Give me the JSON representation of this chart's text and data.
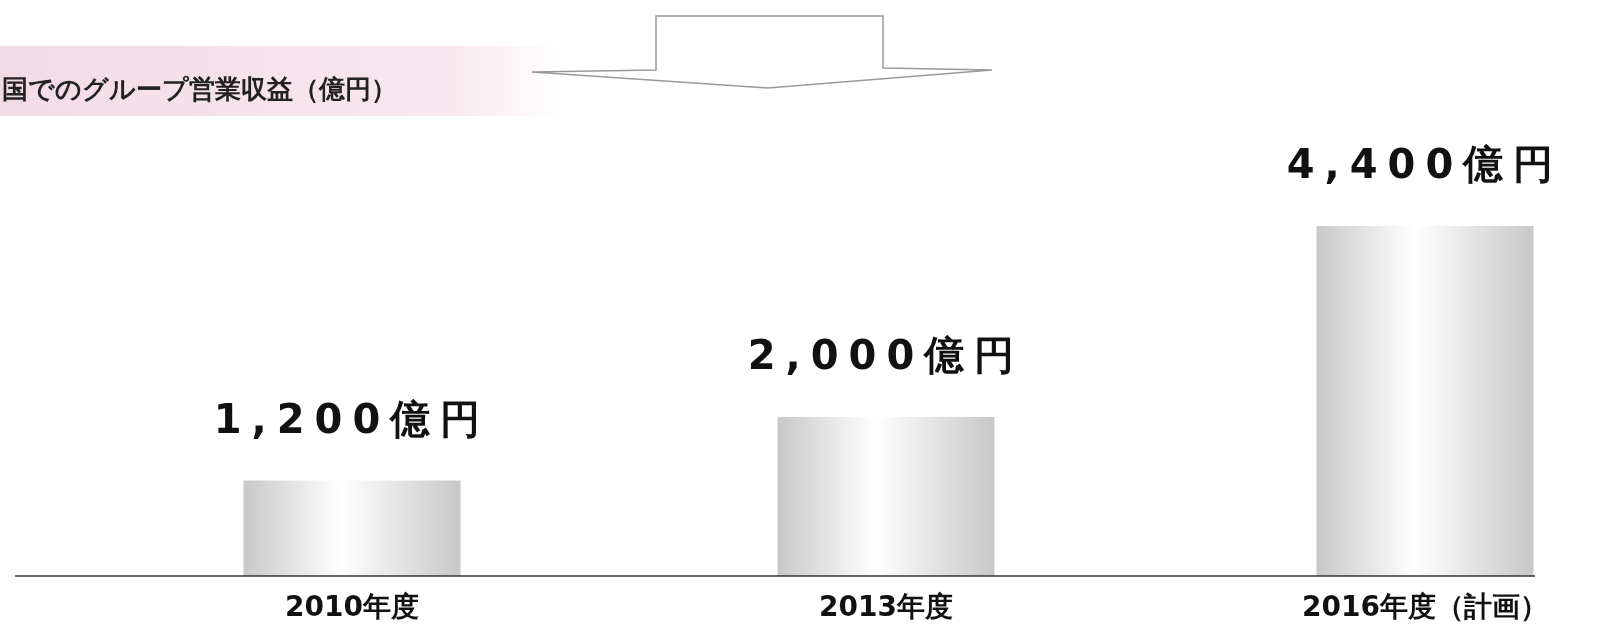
{
  "chart_data": {
    "type": "bar",
    "title": "国でのグループ営業収益（億円）",
    "categories": [
      "2010年度",
      "2013年度",
      "2016年度（計画）"
    ],
    "values": [
      1200,
      2000,
      4400
    ],
    "value_labels": [
      "1,200億円",
      "2,000億円",
      "4,400億円"
    ],
    "color": "#c8c8c8"
  }
}
